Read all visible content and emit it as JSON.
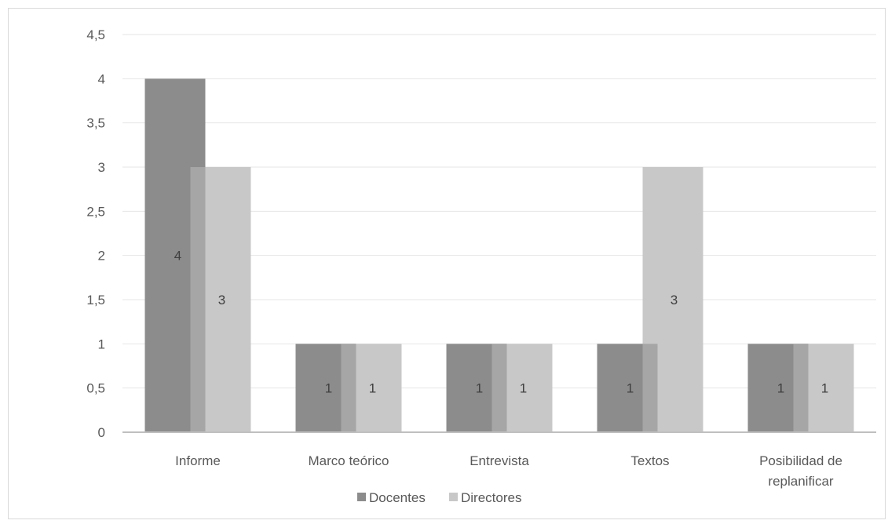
{
  "chart_data": {
    "type": "bar",
    "categories": [
      "Informe",
      "Marco teórico",
      "Entrevista",
      "Textos",
      "Posibilidad de replanificar"
    ],
    "category_lines": [
      [
        "Informe"
      ],
      [
        "Marco teórico"
      ],
      [
        "Entrevista"
      ],
      [
        "Textos"
      ],
      [
        "Posibilidad de",
        "replanificar"
      ]
    ],
    "series": [
      {
        "name": "Docentes",
        "values": [
          4,
          1,
          1,
          1,
          1
        ],
        "color": "#8c8c8c"
      },
      {
        "name": "Directores",
        "values": [
          3,
          1,
          1,
          3,
          1
        ],
        "color": "#c8c8c8"
      }
    ],
    "overlap_color": "#a6a6a6",
    "y_ticks": [
      "0",
      "0,5",
      "1",
      "1,5",
      "2",
      "2,5",
      "3",
      "3,5",
      "4",
      "4,5"
    ],
    "ylim": [
      0,
      4.5
    ],
    "data_labels": true,
    "grid": true,
    "legend_position": "bottom"
  }
}
